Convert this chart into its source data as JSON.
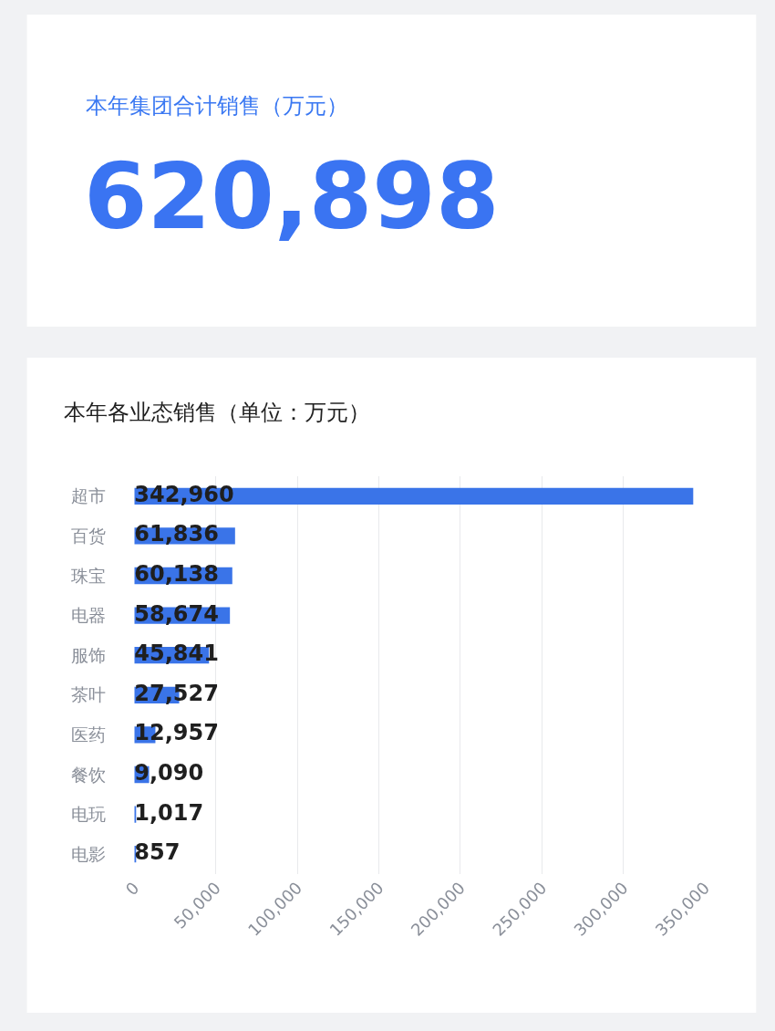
{
  "chart_data": [
    {
      "type": "other",
      "title": "本年集团合计销售（万元）",
      "annotations": [
        "620,898"
      ]
    },
    {
      "type": "bar",
      "title": "本年各业态销售（单位：万元）",
      "orientation": "horizontal",
      "categories": [
        "超市",
        "百货",
        "珠宝",
        "电器",
        "服饰",
        "茶叶",
        "医药",
        "餐饮",
        "电玩",
        "电影"
      ],
      "values": [
        342960,
        61836,
        60138,
        58674,
        45841,
        27527,
        12957,
        9090,
        1017,
        857
      ],
      "value_labels": [
        "342,960",
        "61,836",
        "60,138",
        "58,674",
        "45,841",
        "27,527",
        "12,957",
        "9,090",
        "1,017",
        "857"
      ],
      "color": "#3a74e8",
      "xlim": [
        0,
        350000
      ],
      "xticks": [
        {
          "value": 0,
          "label": "0"
        },
        {
          "value": 50000,
          "label": "50,000"
        },
        {
          "value": 100000,
          "label": "100,000"
        },
        {
          "value": 150000,
          "label": "150,000"
        },
        {
          "value": 200000,
          "label": "200,000"
        },
        {
          "value": 250000,
          "label": "250,000"
        },
        {
          "value": 300000,
          "label": "300,000"
        },
        {
          "value": 350000,
          "label": "350,000"
        }
      ],
      "grid": "x"
    }
  ]
}
